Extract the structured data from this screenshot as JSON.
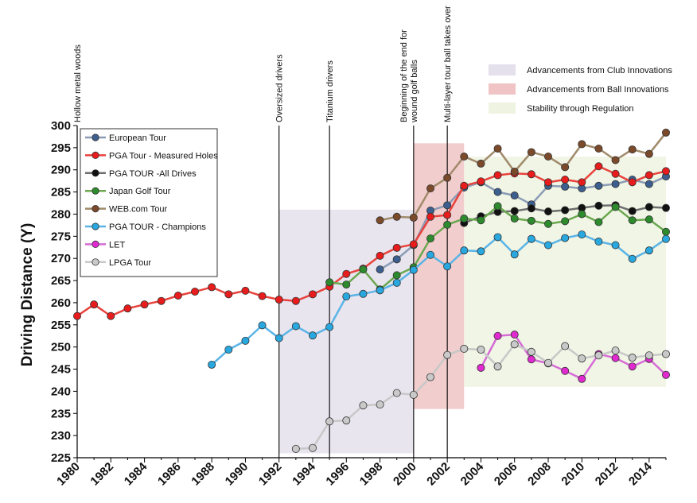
{
  "chart_data": {
    "type": "line",
    "title": "",
    "xlabel": "",
    "ylabel": "Driving Distance (Y)",
    "xlim": [
      1980,
      2015
    ],
    "ylim": [
      225,
      300
    ],
    "x_ticks": [
      "1980",
      "1982",
      "1984",
      "1986",
      "1988",
      "1990",
      "1992",
      "1994",
      "1996",
      "1998",
      "2000",
      "2002",
      "2004",
      "2006",
      "2008",
      "2010",
      "2012",
      "2014"
    ],
    "y_ticks": [
      "225",
      "230",
      "235",
      "240",
      "245",
      "250",
      "255",
      "260",
      "265",
      "270",
      "275",
      "280",
      "285",
      "290",
      "295",
      "300"
    ],
    "grid": false,
    "legend_position": "top-left",
    "annotations": [
      {
        "year": 1980,
        "label": "Hollow metal woods",
        "line": false
      },
      {
        "year": 1992,
        "label": "Oversized drivers",
        "line": true
      },
      {
        "year": 1995,
        "label": "Titanium drivers",
        "line": true
      },
      {
        "year": 2000,
        "label": "Beginning of the end for wound golf balls",
        "lines": [
          "Beginning of the end for",
          "wound golf balls"
        ],
        "line": true
      },
      {
        "year": 2002,
        "label": "Multi-layer tour ball takes over",
        "line": true
      }
    ],
    "zones": [
      {
        "label": "Advancements from Club Innovations",
        "x_start": 1992,
        "x_end": 2000,
        "y_start": 226,
        "y_end": 281,
        "color": "#e4e0ec"
      },
      {
        "label": "Advancements from Ball Innovations",
        "x_start": 2000,
        "x_end": 2003,
        "y_start": 236,
        "y_end": 296,
        "color": "#f0c4c4"
      },
      {
        "label": "Stability through Regulation",
        "x_start": 2003,
        "x_end": 2015,
        "y_start": 241,
        "y_end": 293,
        "color": "#eef3e2"
      }
    ],
    "series": [
      {
        "name": "European Tour",
        "color": "#8a9bb5",
        "marker": "#3d5f8f",
        "points": [
          [
            1998,
            267.5
          ],
          [
            1999,
            269.8
          ],
          [
            2000,
            273.0
          ],
          [
            2001,
            280.8
          ],
          [
            2002,
            282.0
          ],
          [
            2003,
            286.0
          ],
          [
            2004,
            287.2
          ],
          [
            2005,
            285.0
          ],
          [
            2006,
            284.2
          ],
          [
            2007,
            282.2
          ],
          [
            2008,
            286.4
          ],
          [
            2009,
            286.2
          ],
          [
            2010,
            285.8
          ],
          [
            2011,
            286.4
          ],
          [
            2012,
            286.8
          ],
          [
            2013,
            287.8
          ],
          [
            2014,
            286.8
          ],
          [
            2015,
            288.5
          ]
        ]
      },
      {
        "name": "PGA Tour - Measured Holes",
        "color": "#e8423c",
        "marker": "#e81c1c",
        "points": [
          [
            1980,
            257.0
          ],
          [
            1981,
            259.6
          ],
          [
            1982,
            257.0
          ],
          [
            1983,
            258.7
          ],
          [
            1984,
            259.6
          ],
          [
            1985,
            260.4
          ],
          [
            1986,
            261.6
          ],
          [
            1987,
            262.5
          ],
          [
            1988,
            263.5
          ],
          [
            1989,
            261.9
          ],
          [
            1990,
            262.7
          ],
          [
            1991,
            261.5
          ],
          [
            1992,
            260.7
          ],
          [
            1993,
            260.4
          ],
          [
            1994,
            261.9
          ],
          [
            1995,
            263.6
          ],
          [
            1996,
            266.5
          ],
          [
            1997,
            267.7
          ],
          [
            1998,
            270.6
          ],
          [
            1999,
            272.4
          ],
          [
            2000,
            273.2
          ],
          [
            2001,
            279.4
          ],
          [
            2002,
            279.8
          ],
          [
            2003,
            286.4
          ],
          [
            2004,
            287.4
          ],
          [
            2005,
            288.8
          ],
          [
            2006,
            289.2
          ],
          [
            2007,
            289.0
          ],
          [
            2008,
            287.2
          ],
          [
            2009,
            287.8
          ],
          [
            2010,
            287.2
          ],
          [
            2011,
            290.8
          ],
          [
            2012,
            289.1
          ],
          [
            2013,
            287.2
          ],
          [
            2014,
            288.8
          ],
          [
            2015,
            289.7
          ]
        ]
      },
      {
        "name": "PGA TOUR -All Drives",
        "color": "#6e6e6e",
        "marker": "#111111",
        "points": [
          [
            2003,
            278.0
          ],
          [
            2004,
            279.5
          ],
          [
            2005,
            280.5
          ],
          [
            2006,
            280.7
          ],
          [
            2007,
            281.3
          ],
          [
            2008,
            280.6
          ],
          [
            2009,
            280.9
          ],
          [
            2010,
            281.4
          ],
          [
            2011,
            281.9
          ],
          [
            2012,
            282.0
          ],
          [
            2013,
            280.7
          ],
          [
            2014,
            281.6
          ],
          [
            2015,
            281.4
          ]
        ]
      },
      {
        "name": "Japan Golf Tour",
        "color": "#6aa84f",
        "marker": "#2d8a2d",
        "points": [
          [
            1995,
            264.6
          ],
          [
            1996,
            264.1
          ],
          [
            1997,
            267.5
          ],
          [
            1998,
            263.0
          ],
          [
            1999,
            266.2
          ],
          [
            2000,
            268.0
          ],
          [
            2001,
            274.5
          ],
          [
            2002,
            277.6
          ],
          [
            2003,
            279.0
          ],
          [
            2004,
            278.6
          ],
          [
            2005,
            281.8
          ],
          [
            2006,
            279.0
          ],
          [
            2007,
            278.5
          ],
          [
            2008,
            277.8
          ],
          [
            2009,
            278.4
          ],
          [
            2010,
            280.0
          ],
          [
            2011,
            278.2
          ],
          [
            2012,
            281.6
          ],
          [
            2013,
            278.6
          ],
          [
            2014,
            278.8
          ],
          [
            2015,
            276.0
          ]
        ]
      },
      {
        "name": "WEB.com Tour",
        "color": "#a08a6a",
        "marker": "#7b4a2a",
        "points": [
          [
            1998,
            278.6
          ],
          [
            1999,
            279.4
          ],
          [
            2000,
            279.2
          ],
          [
            2001,
            285.8
          ],
          [
            2002,
            288.2
          ],
          [
            2003,
            293.0
          ],
          [
            2004,
            291.4
          ],
          [
            2005,
            294.8
          ],
          [
            2006,
            289.6
          ],
          [
            2007,
            294.0
          ],
          [
            2008,
            293.0
          ],
          [
            2009,
            290.6
          ],
          [
            2010,
            295.8
          ],
          [
            2011,
            294.8
          ],
          [
            2012,
            292.2
          ],
          [
            2013,
            294.6
          ],
          [
            2014,
            293.6
          ],
          [
            2015,
            298.4
          ]
        ]
      },
      {
        "name": "PGA TOUR - Champions",
        "color": "#5ab4e6",
        "marker": "#29a8e0",
        "points": [
          [
            1988,
            246.0
          ],
          [
            1989,
            249.4
          ],
          [
            1990,
            251.4
          ],
          [
            1991,
            254.9
          ],
          [
            1992,
            252.0
          ],
          [
            1993,
            254.7
          ],
          [
            1994,
            252.6
          ],
          [
            1995,
            254.5
          ],
          [
            1996,
            261.4
          ],
          [
            1997,
            262.0
          ],
          [
            1998,
            262.8
          ],
          [
            1999,
            264.5
          ],
          [
            2000,
            267.4
          ],
          [
            2001,
            270.8
          ],
          [
            2002,
            268.2
          ],
          [
            2003,
            271.8
          ],
          [
            2004,
            271.6
          ],
          [
            2005,
            274.8
          ],
          [
            2006,
            270.9
          ],
          [
            2007,
            274.4
          ],
          [
            2008,
            273.0
          ],
          [
            2009,
            274.6
          ],
          [
            2010,
            275.4
          ],
          [
            2011,
            273.8
          ],
          [
            2012,
            273.0
          ],
          [
            2013,
            269.9
          ],
          [
            2014,
            271.8
          ],
          [
            2015,
            274.4
          ]
        ]
      },
      {
        "name": "LET",
        "color": "#d66bd6",
        "marker": "#e02ad0",
        "points": [
          [
            2004,
            245.3
          ],
          [
            2005,
            252.5
          ],
          [
            2006,
            252.8
          ],
          [
            2007,
            247.2
          ],
          [
            2008,
            246.3
          ],
          [
            2009,
            244.6
          ],
          [
            2010,
            242.8
          ],
          [
            2011,
            248.4
          ],
          [
            2012,
            247.5
          ],
          [
            2013,
            245.6
          ],
          [
            2014,
            247.3
          ],
          [
            2015,
            243.7
          ]
        ]
      },
      {
        "name": "LPGA Tour",
        "color": "#c8c8c8",
        "marker": "#c9c9c9",
        "points": [
          [
            1993,
            227.0
          ],
          [
            1994,
            227.2
          ],
          [
            1995,
            233.2
          ],
          [
            1996,
            233.4
          ],
          [
            1997,
            236.8
          ],
          [
            1998,
            237.0
          ],
          [
            1999,
            239.6
          ],
          [
            2000,
            239.2
          ],
          [
            2001,
            243.2
          ],
          [
            2002,
            248.2
          ],
          [
            2003,
            249.6
          ],
          [
            2004,
            249.4
          ],
          [
            2005,
            245.6
          ],
          [
            2006,
            250.6
          ],
          [
            2007,
            248.9
          ],
          [
            2008,
            246.4
          ],
          [
            2009,
            250.2
          ],
          [
            2010,
            247.4
          ],
          [
            2011,
            248.1
          ],
          [
            2012,
            249.2
          ],
          [
            2013,
            247.6
          ],
          [
            2014,
            248.1
          ],
          [
            2015,
            248.4
          ]
        ]
      }
    ]
  }
}
